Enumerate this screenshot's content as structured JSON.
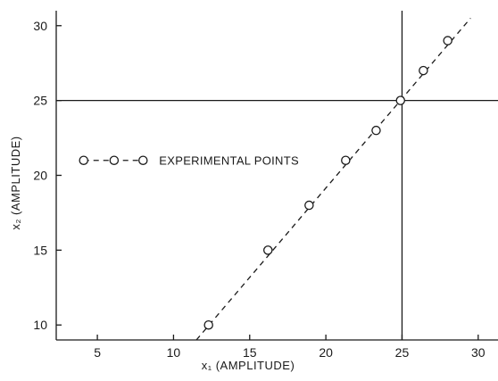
{
  "chart_data": {
    "type": "scatter",
    "xlabel": "x₁ (AMPLITUDE)",
    "ylabel": "x₂ (AMPLITUDE)",
    "xlim": [
      2.3,
      31.3
    ],
    "ylim": [
      9,
      31
    ],
    "x_ticks": [
      5,
      10,
      15,
      20,
      25,
      30
    ],
    "y_ticks": [
      10,
      15,
      20,
      25,
      30
    ],
    "grid": false,
    "legend_placement": "center-left",
    "series": [
      {
        "name": "EXPERIMENTAL POINTS",
        "marker": "open-circle",
        "points": [
          {
            "x": 12.3,
            "y": 10
          },
          {
            "x": 16.2,
            "y": 15
          },
          {
            "x": 18.9,
            "y": 18
          },
          {
            "x": 21.3,
            "y": 21
          },
          {
            "x": 23.3,
            "y": 23
          },
          {
            "x": 24.9,
            "y": 25
          },
          {
            "x": 26.4,
            "y": 27
          },
          {
            "x": 28.0,
            "y": 29
          }
        ]
      }
    ],
    "fit_line": {
      "style": "dashed",
      "points": [
        {
          "x": 11.5,
          "y": 9
        },
        {
          "x": 29.5,
          "y": 30.5
        }
      ]
    },
    "reference_lines": {
      "vertical_x": 25,
      "horizontal_y": 25
    },
    "legend": {
      "label": "EXPERIMENTAL POINTS",
      "marker_x": [
        4.1,
        6.1,
        8.0
      ],
      "y": 21
    }
  }
}
